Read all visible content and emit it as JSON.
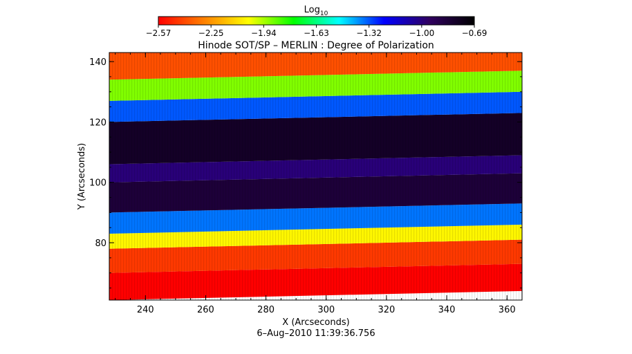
{
  "chart_data": {
    "type": "heatmap",
    "title": "Hinode SOT/SP – MERLIN : Degree of Polarization",
    "xlabel": "X (Arcseconds)",
    "ylabel": "Y (Arcseconds)",
    "xlim": [
      228,
      365
    ],
    "ylim": [
      61,
      143
    ],
    "x_ticks": [
      240,
      260,
      280,
      300,
      320,
      340,
      360
    ],
    "y_ticks": [
      80,
      100,
      120,
      140
    ],
    "colorbar": {
      "label_base": "Log",
      "label_sub": "10",
      "range": [
        -2.57,
        -0.69
      ],
      "ticks": [
        "−2.57",
        "−2.25",
        "−1.94",
        "−1.63",
        "−1.32",
        "−1.00",
        "−0.69"
      ],
      "colors": [
        "#ff0000",
        "#ff7f00",
        "#ffff00",
        "#00ff00",
        "#00ffff",
        "#0000ff",
        "#300060",
        "#000000"
      ]
    },
    "bands": [
      {
        "y": [
          61,
          70
        ],
        "value": -2.57
      },
      {
        "y": [
          70,
          78
        ],
        "value": -2.45
      },
      {
        "y": [
          78,
          83
        ],
        "value": -2.05
      },
      {
        "y": [
          83,
          90
        ],
        "value": -1.35
      },
      {
        "y": [
          90,
          100
        ],
        "value": -0.85
      },
      {
        "y": [
          100,
          106
        ],
        "value": -1.0
      },
      {
        "y": [
          106,
          120
        ],
        "value": -0.8
      },
      {
        "y": [
          120,
          127
        ],
        "value": -1.32
      },
      {
        "y": [
          127,
          134
        ],
        "value": -1.9
      },
      {
        "y": [
          134,
          143
        ],
        "value": -2.4
      }
    ],
    "band_tilt_arcsec": 3
  },
  "timestamp": "6–Aug–2010 11:39:36.756"
}
